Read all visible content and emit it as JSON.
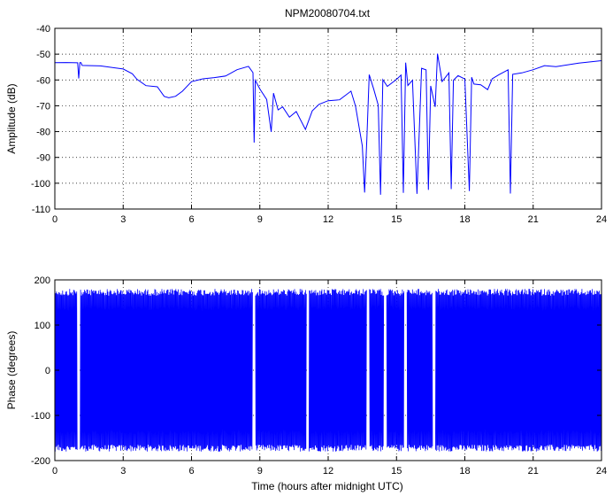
{
  "colors": {
    "series": "#0000ff",
    "axis": "#000000",
    "grid": "#000000",
    "background": "#ffffff"
  },
  "chart_data": [
    {
      "type": "line",
      "title": "NPM20080704.txt",
      "xlabel": "",
      "ylabel": "Amplitude (dB)",
      "xlim": [
        0,
        24
      ],
      "ylim": [
        -110,
        -40
      ],
      "xticks": [
        "0",
        "3",
        "6",
        "9",
        "12",
        "15",
        "18",
        "21",
        "24"
      ],
      "yticks": [
        "-40",
        "-50",
        "-60",
        "-70",
        "-80",
        "-90",
        "-100",
        "-110"
      ],
      "grid": true,
      "x": [
        0,
        0.5,
        1.0,
        1.05,
        1.1,
        1.15,
        1.2,
        2.0,
        3.0,
        3.4,
        3.6,
        4.0,
        4.5,
        4.8,
        5.0,
        5.3,
        5.6,
        6.0,
        6.5,
        7.0,
        7.5,
        8.0,
        8.5,
        8.7,
        8.75,
        8.8,
        9.0,
        9.3,
        9.5,
        9.6,
        9.8,
        10.0,
        10.3,
        10.6,
        11.0,
        11.3,
        11.6,
        12.0,
        12.5,
        13.0,
        13.2,
        13.5,
        13.6,
        13.7,
        13.8,
        14.0,
        14.2,
        14.3,
        14.4,
        14.6,
        15.0,
        15.2,
        15.3,
        15.4,
        15.5,
        15.7,
        15.9,
        16.1,
        16.3,
        16.4,
        16.5,
        16.7,
        16.8,
        17.0,
        17.3,
        17.4,
        17.5,
        17.7,
        18.0,
        18.2,
        18.3,
        18.4,
        18.7,
        19.0,
        19.2,
        19.5,
        19.9,
        20.0,
        20.1,
        20.5,
        21.0,
        21.5,
        22.0,
        23.0,
        24.0
      ],
      "y": [
        -53.5,
        -53,
        -53.5,
        -60,
        -53.5,
        -53.5,
        -54,
        -55,
        -56,
        -58,
        -60,
        -62,
        -63,
        -66,
        -67,
        -66,
        -64,
        -61,
        -60,
        -59.5,
        -58,
        -56,
        -55,
        -57,
        -84,
        -60,
        -64,
        -68,
        -80,
        -65,
        -72,
        -70,
        -74,
        -72,
        -79,
        -72,
        -70,
        -68,
        -68,
        -64,
        -70,
        -86,
        -104,
        -82,
        -58,
        -64,
        -70,
        -104,
        -60,
        -62,
        -60,
        -58,
        -104,
        -53,
        -62,
        -60,
        -104,
        -56,
        -56,
        -102,
        -62,
        -70,
        -50,
        -60,
        -57,
        -102,
        -60,
        -58,
        -60,
        -103,
        -59,
        -62,
        -62,
        -64,
        -59,
        -58,
        -56,
        -104,
        -58,
        -57,
        -56,
        -55,
        -54.5,
        -53.5,
        -53
      ]
    },
    {
      "type": "line",
      "title": "",
      "xlabel": "Time (hours after midnight UTC)",
      "ylabel": "Phase (degrees)",
      "xlim": [
        0,
        24
      ],
      "ylim": [
        -200,
        200
      ],
      "xticks": [
        "0",
        "3",
        "6",
        "9",
        "12",
        "15",
        "18",
        "21",
        "24"
      ],
      "yticks": [
        "200",
        "100",
        "0",
        "-100",
        "-200"
      ],
      "grid": true,
      "phase_range": [
        -180,
        180
      ],
      "gaps_hours": [
        1.05,
        8.75,
        11.1,
        13.75,
        14.5,
        15.4,
        16.65
      ],
      "series_description": "rapidly wrapping phase between -180 and 180 degrees"
    }
  ]
}
